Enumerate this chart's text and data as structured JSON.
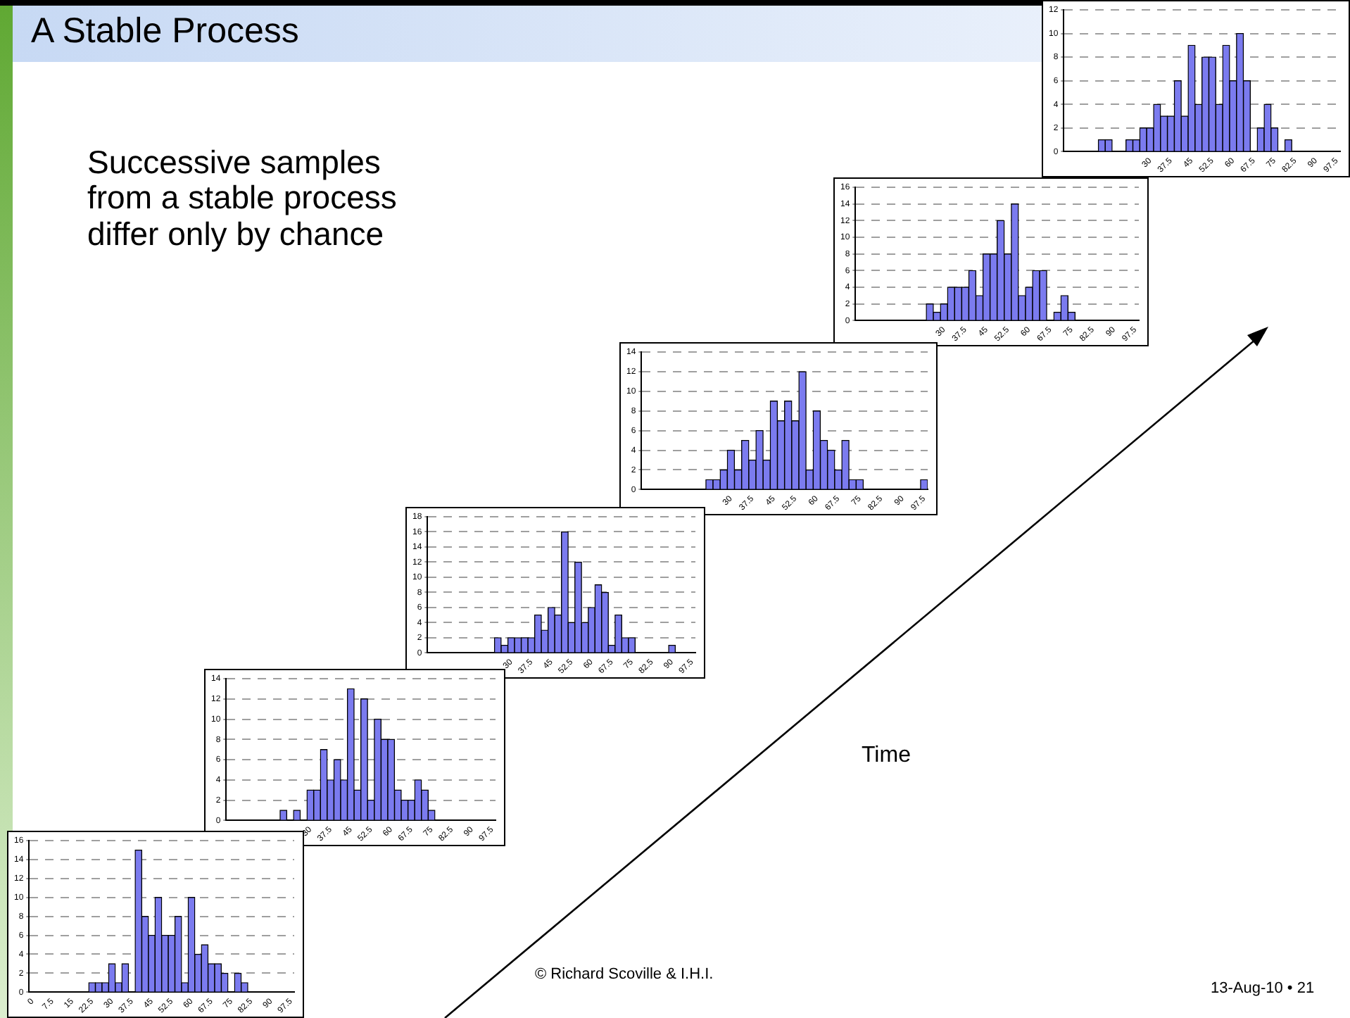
{
  "chart_data": [
    {
      "type": "other",
      "title": "A Stable Process",
      "annotations": [
        "Successive samples from a stable process differ only by chance",
        "Time",
        "© Richard Scoville & I.H.I.",
        "13-Aug-10 • 21"
      ]
    },
    {
      "type": "bar",
      "categories": [
        "0",
        null,
        null,
        "7.5",
        null,
        null,
        "15",
        null,
        null,
        "22.5",
        null,
        null,
        "30",
        null,
        null,
        "37.5",
        null,
        null,
        "45",
        null,
        null,
        "52.5",
        null,
        null,
        "60",
        null,
        null,
        "67.5",
        null,
        null,
        "75",
        null,
        null,
        "82.5",
        null,
        null,
        "90",
        null,
        null,
        "97.5"
      ],
      "values": [
        0,
        0,
        0,
        0,
        0,
        0,
        0,
        0,
        0,
        1,
        1,
        1,
        3,
        1,
        3,
        0,
        15,
        8,
        6,
        10,
        6,
        6,
        8,
        1,
        10,
        4,
        5,
        3,
        3,
        2,
        0,
        2,
        1,
        0,
        0,
        0,
        0,
        0,
        0,
        0
      ],
      "color": "#7b7bef",
      "ylim": [
        0,
        16
      ],
      "yticks": [
        0,
        2,
        4,
        6,
        8,
        10,
        12,
        14,
        16
      ],
      "grid": "y"
    },
    {
      "type": "bar",
      "categories": [
        null,
        null,
        null,
        null,
        null,
        null,
        null,
        null,
        null,
        null,
        null,
        null,
        "30",
        null,
        null,
        "37.5",
        null,
        null,
        "45",
        null,
        null,
        "52.5",
        null,
        null,
        "60",
        null,
        null,
        "67.5",
        null,
        null,
        "75",
        null,
        null,
        "82.5",
        null,
        null,
        "90",
        null,
        null,
        "97.5"
      ],
      "values": [
        0,
        0,
        0,
        0,
        0,
        0,
        0,
        0,
        1,
        0,
        1,
        0,
        3,
        3,
        7,
        4,
        6,
        4,
        13,
        3,
        12,
        2,
        10,
        8,
        8,
        3,
        2,
        2,
        4,
        3,
        1,
        0,
        0,
        0,
        0,
        0,
        0,
        0,
        0,
        0
      ],
      "color": "#7b7bef",
      "ylim": [
        0,
        14
      ],
      "yticks": [
        0,
        2,
        4,
        6,
        8,
        10,
        12,
        14
      ],
      "grid": "y"
    },
    {
      "type": "bar",
      "categories": [
        null,
        null,
        null,
        null,
        null,
        null,
        null,
        null,
        null,
        null,
        null,
        null,
        "30",
        null,
        null,
        "37.5",
        null,
        null,
        "45",
        null,
        null,
        "52.5",
        null,
        null,
        "60",
        null,
        null,
        "67.5",
        null,
        null,
        "75",
        null,
        null,
        "82.5",
        null,
        null,
        "90",
        null,
        null,
        "97.5"
      ],
      "values": [
        0,
        0,
        0,
        0,
        0,
        0,
        0,
        0,
        0,
        0,
        2,
        1,
        2,
        2,
        2,
        2,
        5,
        3,
        6,
        5,
        16,
        4,
        12,
        4,
        6,
        9,
        8,
        1,
        5,
        2,
        2,
        0,
        0,
        0,
        0,
        0,
        1,
        0,
        0,
        0
      ],
      "color": "#7b7bef",
      "ylim": [
        0,
        18
      ],
      "yticks": [
        0,
        2,
        4,
        6,
        8,
        10,
        12,
        14,
        16,
        18
      ],
      "grid": "y"
    },
    {
      "type": "bar",
      "categories": [
        null,
        null,
        null,
        null,
        null,
        null,
        null,
        null,
        null,
        null,
        null,
        null,
        "30",
        null,
        null,
        "37.5",
        null,
        null,
        "45",
        null,
        null,
        "52.5",
        null,
        null,
        "60",
        null,
        null,
        "67.5",
        null,
        null,
        "75",
        null,
        null,
        "82.5",
        null,
        null,
        "90",
        null,
        null,
        "97.5"
      ],
      "values": [
        0,
        0,
        0,
        0,
        0,
        0,
        0,
        0,
        0,
        1,
        1,
        2,
        4,
        2,
        5,
        3,
        6,
        3,
        9,
        7,
        9,
        7,
        12,
        2,
        8,
        5,
        4,
        2,
        5,
        1,
        1,
        0,
        0,
        0,
        0,
        0,
        0,
        0,
        0,
        1
      ],
      "color": "#7b7bef",
      "ylim": [
        0,
        14
      ],
      "yticks": [
        0,
        2,
        4,
        6,
        8,
        10,
        12,
        14
      ],
      "grid": "y"
    },
    {
      "type": "bar",
      "categories": [
        null,
        null,
        null,
        null,
        null,
        null,
        null,
        null,
        null,
        null,
        null,
        null,
        "30",
        null,
        null,
        "37.5",
        null,
        null,
        "45",
        null,
        null,
        "52.5",
        null,
        null,
        "60",
        null,
        null,
        "67.5",
        null,
        null,
        "75",
        null,
        null,
        "82.5",
        null,
        null,
        "90",
        null,
        null,
        "97.5"
      ],
      "values": [
        0,
        0,
        0,
        0,
        0,
        0,
        0,
        0,
        0,
        0,
        2,
        1,
        2,
        4,
        4,
        4,
        6,
        3,
        8,
        8,
        12,
        8,
        14,
        3,
        4,
        6,
        6,
        0,
        1,
        3,
        1,
        0,
        0,
        0,
        0,
        0,
        0,
        0,
        0,
        0
      ],
      "color": "#7b7bef",
      "ylim": [
        0,
        16
      ],
      "yticks": [
        0,
        2,
        4,
        6,
        8,
        10,
        12,
        14,
        16
      ],
      "grid": "y"
    },
    {
      "type": "bar",
      "categories": [
        null,
        null,
        null,
        null,
        null,
        null,
        null,
        null,
        null,
        null,
        null,
        null,
        "30",
        null,
        null,
        "37.5",
        null,
        null,
        "45",
        null,
        null,
        "52.5",
        null,
        null,
        "60",
        null,
        null,
        "67.5",
        null,
        null,
        "75",
        null,
        null,
        "82.5",
        null,
        null,
        "90",
        null,
        null,
        "97.5"
      ],
      "values": [
        0,
        0,
        0,
        0,
        0,
        1,
        1,
        0,
        0,
        1,
        1,
        2,
        2,
        4,
        3,
        3,
        6,
        3,
        9,
        4,
        8,
        8,
        4,
        9,
        6,
        10,
        6,
        0,
        2,
        4,
        2,
        0,
        1,
        0,
        0,
        0,
        0,
        0,
        0,
        0
      ],
      "color": "#7b7bef",
      "ylim": [
        0,
        12
      ],
      "yticks": [
        0,
        2,
        4,
        6,
        8,
        10,
        12
      ],
      "grid": "y"
    }
  ]
}
